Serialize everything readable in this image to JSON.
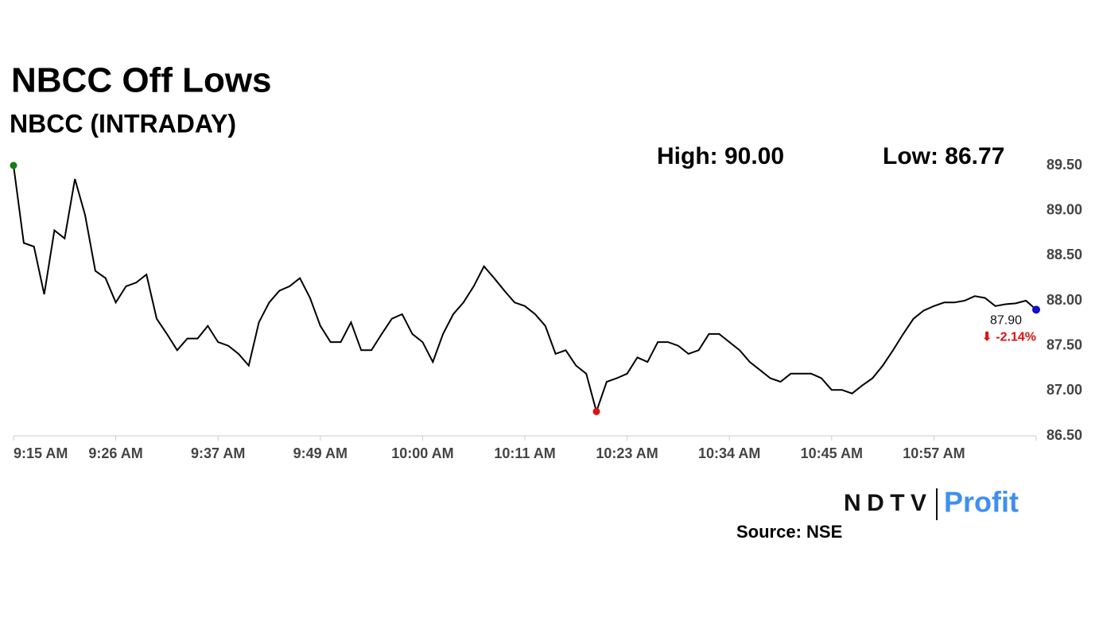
{
  "chart_data": {
    "type": "line",
    "title": "NBCC Off Lows",
    "subtitle": "NBCC (INTRADAY)",
    "high_label": "High: 90.00",
    "low_label": "Low: 86.77",
    "end_label": "87.90",
    "change_label": "⬇ -2.14%",
    "source": "Source: NSE",
    "brand": [
      "NDTV",
      "Profit"
    ],
    "categories": [
      "9:15 AM",
      null,
      null,
      null,
      null,
      null,
      null,
      null,
      null,
      null,
      "9:26 AM",
      null,
      null,
      null,
      null,
      null,
      null,
      null,
      null,
      null,
      "9:37 AM",
      null,
      null,
      null,
      null,
      null,
      null,
      null,
      null,
      null,
      "9:49 AM",
      null,
      null,
      null,
      null,
      null,
      null,
      null,
      null,
      null,
      "10:00 AM",
      null,
      null,
      null,
      null,
      null,
      null,
      null,
      null,
      null,
      "10:11 AM",
      null,
      null,
      null,
      null,
      null,
      null,
      null,
      null,
      null,
      "10:23 AM",
      null,
      null,
      null,
      null,
      null,
      null,
      null,
      null,
      null,
      "10:34 AM",
      null,
      null,
      null,
      null,
      null,
      null,
      null,
      null,
      null,
      "10:45 AM",
      null,
      null,
      null,
      null,
      null,
      null,
      null,
      null,
      null,
      "10:57 AM",
      null,
      null,
      null,
      null,
      null,
      null,
      null,
      null,
      null,
      null
    ],
    "series": [
      {
        "name": "NBCC",
        "color": "#000000",
        "values": [
          89.5,
          88.64,
          88.6,
          88.07,
          88.78,
          88.69,
          89.35,
          88.95,
          88.33,
          88.25,
          87.98,
          88.16,
          88.2,
          88.29,
          87.8,
          87.63,
          87.45,
          87.58,
          87.58,
          87.72,
          87.54,
          87.5,
          87.41,
          87.28,
          87.76,
          87.98,
          88.11,
          88.16,
          88.25,
          88.03,
          87.72,
          87.54,
          87.54,
          87.76,
          87.45,
          87.45,
          87.63,
          87.8,
          87.85,
          87.63,
          87.54,
          87.32,
          87.63,
          87.85,
          87.98,
          88.16,
          88.38,
          88.25,
          88.11,
          87.98,
          87.94,
          87.85,
          87.72,
          87.41,
          87.45,
          87.28,
          87.19,
          86.77,
          87.1,
          87.14,
          87.19,
          87.37,
          87.32,
          87.54,
          87.54,
          87.5,
          87.41,
          87.45,
          87.63,
          87.63,
          87.54,
          87.45,
          87.32,
          87.23,
          87.14,
          87.1,
          87.19,
          87.19,
          87.19,
          87.14,
          87.01,
          87.01,
          86.97,
          87.06,
          87.14,
          87.28,
          87.45,
          87.63,
          87.8,
          87.89,
          87.94,
          87.98,
          87.98,
          88.0,
          88.05,
          88.03,
          87.94,
          87.96,
          87.97,
          88.0,
          87.9
        ]
      }
    ],
    "start_color": "#118011",
    "low_color": "#e01010",
    "end_color": "#1010c8",
    "ylim": [
      86.5,
      89.5
    ],
    "yticks": [
      {
        "value": 86.5,
        "label": "86.50"
      },
      {
        "value": 87,
        "label": "87.00"
      },
      {
        "value": 87.5,
        "label": "87.50"
      },
      {
        "value": 88,
        "label": "88.00"
      },
      {
        "value": 88.5,
        "label": "88.50"
      },
      {
        "value": 89,
        "label": "89.00"
      },
      {
        "value": 89.5,
        "label": "89.50"
      }
    ]
  }
}
